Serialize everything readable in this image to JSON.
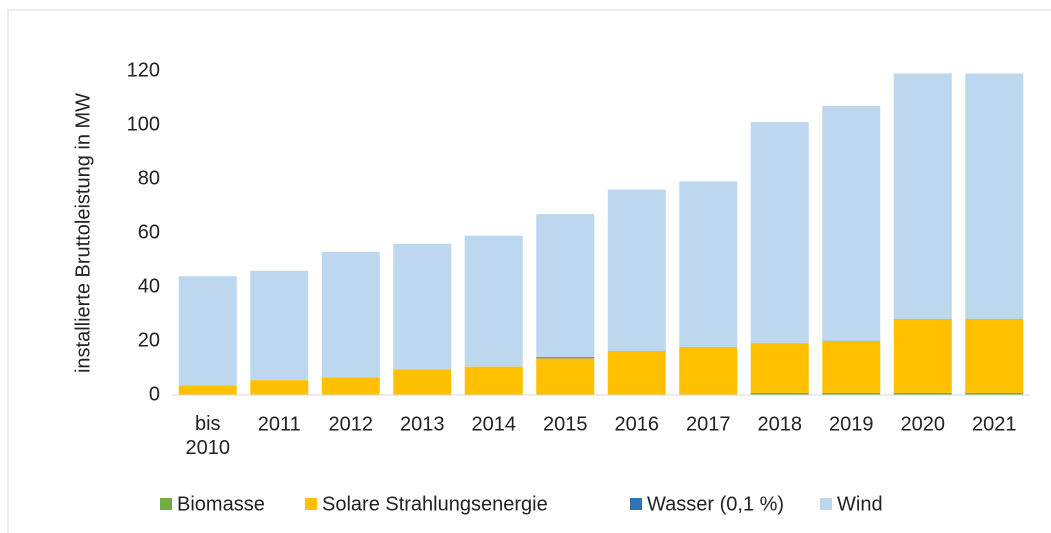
{
  "chart_data": {
    "type": "stacked_bar",
    "y_label": "installierte Bruttoleistung in MW",
    "categories": [
      "bis 2010",
      "2011",
      "2012",
      "2013",
      "2014",
      "2015",
      "2016",
      "2017",
      "2018",
      "2019",
      "2020",
      "2021"
    ],
    "series": [
      {
        "name": "Biomasse",
        "color": "#70ad47",
        "values": [
          0,
          0,
          0,
          0,
          0,
          0,
          0,
          0,
          0.8,
          0.8,
          0.8,
          0.8
        ]
      },
      {
        "name": "Solare Strahlungsenergie",
        "color": "#ffc000",
        "values": [
          3.5,
          5.5,
          6.5,
          9.5,
          10.5,
          13.6,
          16,
          17.5,
          18.2,
          19.2,
          27.2,
          27.2
        ]
      },
      {
        "name": "Wasser (0,1 %)",
        "color": "#2e75b6",
        "values": [
          0,
          0,
          0,
          0,
          0,
          0.4,
          0.1,
          0.1,
          0.1,
          0.1,
          0.1,
          0.1
        ]
      },
      {
        "name": "Wind",
        "color": "#bdd7ee",
        "values": [
          40.5,
          40.5,
          46.5,
          46.5,
          48.5,
          53,
          60,
          61.5,
          82,
          87,
          91,
          91
        ]
      }
    ],
    "ylim": [
      0,
      120
    ],
    "yticks": [
      0,
      20,
      40,
      60,
      80,
      100,
      120
    ],
    "grid": false
  }
}
